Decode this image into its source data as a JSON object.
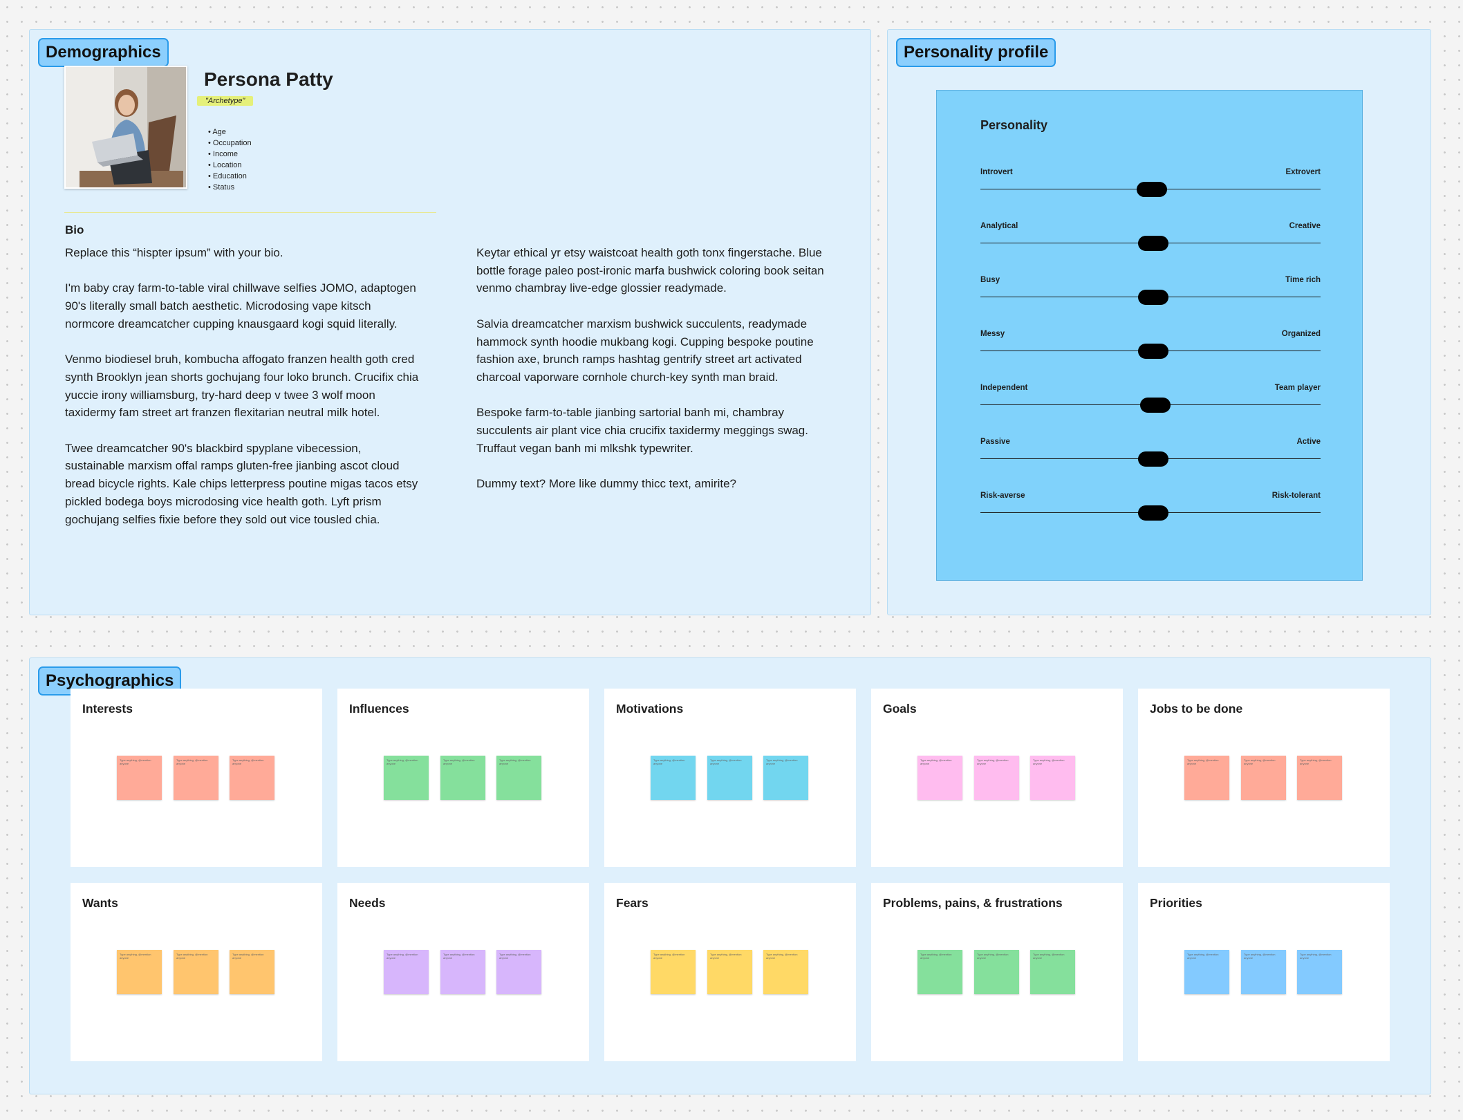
{
  "demographics": {
    "label": "Demographics",
    "name": "Persona Patty",
    "archetype": "\"Archetype\"",
    "attributes": [
      "Age",
      "Occupation",
      "Income",
      "Location",
      "Education",
      "Status"
    ],
    "bio_title": "Bio",
    "bio_left": [
      "Replace this “hispter ipsum” with your bio.",
      "I'm baby cray farm-to-table viral chillwave selfies JOMO, adaptogen 90's literally small batch aesthetic. Microdosing vape kitsch normcore dreamcatcher cupping knausgaard kogi squid literally.",
      "Venmo biodiesel bruh, kombucha affogato franzen health goth cred synth Brooklyn jean shorts gochujang four loko brunch. Crucifix chia yuccie irony williamsburg, try-hard deep v twee 3 wolf moon taxidermy fam street art franzen flexitarian neutral milk hotel.",
      "Twee dreamcatcher 90's blackbird spyplane vibecession, sustainable marxism offal ramps gluten-free jianbing ascot cloud bread bicycle rights. Kale chips letterpress poutine migas tacos etsy pickled bodega boys microdosing vice health goth. Lyft prism gochujang selfies fixie before they sold out vice tousled chia."
    ],
    "bio_right": [
      "Keytar ethical yr etsy waistcoat health goth tonx fingerstache. Blue bottle forage paleo post-ironic marfa bushwick coloring book seitan venmo chambray live-edge glossier readymade.",
      "Salvia dreamcatcher marxism bushwick succulents, readymade hammock synth hoodie mukbang kogi. Cupping bespoke poutine fashion axe, brunch ramps hashtag gentrify street art activated charcoal vaporware cornhole church-key synth man braid.",
      "Bespoke farm-to-table jianbing sartorial banh mi, chambray succulents air plant vice chia crucifix taxidermy meggings swag. Truffaut vegan banh mi mlkshk typewriter.",
      "Dummy text? More like dummy thicc text, amirite?"
    ]
  },
  "personality": {
    "label": "Personality profile",
    "title": "Personality",
    "sliders": [
      {
        "left": "Introvert",
        "right": "Extrovert",
        "value": 0.505
      },
      {
        "left": "Analytical",
        "right": "Creative",
        "value": 0.508
      },
      {
        "left": "Busy",
        "right": "Time rich",
        "value": 0.508
      },
      {
        "left": "Messy",
        "right": "Organized",
        "value": 0.508
      },
      {
        "left": "Independent",
        "right": "Team player",
        "value": 0.515
      },
      {
        "left": "Passive",
        "right": "Active",
        "value": 0.508
      },
      {
        "left": "Risk-averse",
        "right": "Risk-tolerant",
        "value": 0.508
      }
    ]
  },
  "psychographics": {
    "label": "Psychographics",
    "note_text": "Type anything, @mention anyone",
    "cards": [
      {
        "title": "Interests",
        "color": "#ffaa98"
      },
      {
        "title": "Influences",
        "color": "#85e09c"
      },
      {
        "title": "Motivations",
        "color": "#72d6ef"
      },
      {
        "title": "Goals",
        "color": "#ffbcef"
      },
      {
        "title": "Jobs to be done",
        "color": "#ffaa98"
      },
      {
        "title": "Wants",
        "color": "#ffc56e"
      },
      {
        "title": "Needs",
        "color": "#d7b6fc"
      },
      {
        "title": "Fears",
        "color": "#ffd966"
      },
      {
        "title": "Problems, pains, & frustrations",
        "color": "#85e09c"
      },
      {
        "title": "Priorities",
        "color": "#83caff"
      }
    ]
  }
}
